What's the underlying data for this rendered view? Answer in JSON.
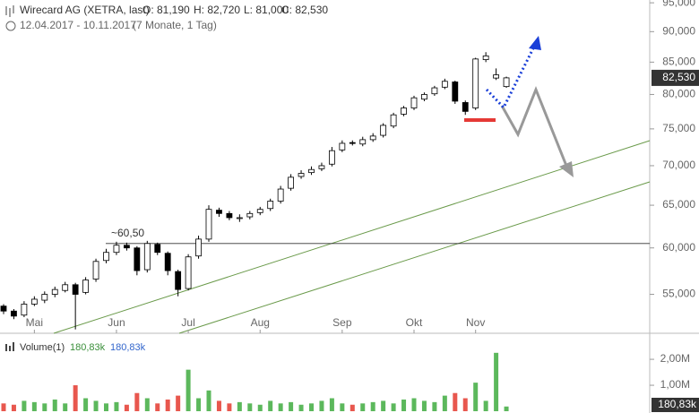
{
  "chart_data": {
    "type": "candlestick",
    "title": "Wirecard AG (XETRA, last)",
    "ohlc_labels": [
      "O: 81,190",
      "H: 82,720",
      "L: 81,000",
      "C: 82,530"
    ],
    "date_range": "12.04.2017 - 10.11.2017",
    "period": "(7 Monate, 1 Tag)",
    "categories": [
      null,
      null,
      null,
      "Mai",
      null,
      null,
      null,
      null,
      null,
      null,
      null,
      "Jun",
      null,
      null,
      null,
      null,
      null,
      null,
      "Jul",
      null,
      null,
      null,
      null,
      null,
      null,
      "Aug",
      null,
      null,
      null,
      null,
      null,
      null,
      null,
      "Sep",
      null,
      null,
      null,
      null,
      null,
      null,
      "Okt",
      null,
      null,
      null,
      null,
      null,
      "Nov",
      null,
      null,
      null
    ],
    "open": [
      53800,
      53300,
      52900,
      54000,
      54400,
      55000,
      55400,
      56000,
      55200,
      56600,
      58600,
      59500,
      60300,
      60000,
      57600,
      60400,
      59400,
      57400,
      55600,
      59100,
      61000,
      64400,
      64000,
      63400,
      63600,
      64100,
      64600,
      65500,
      67100,
      68600,
      69100,
      69600,
      70200,
      72100,
      73100,
      72900,
      73500,
      74100,
      75400,
      77100,
      78000,
      79300,
      80100,
      81100,
      81900,
      78800,
      78000,
      85400,
      82500,
      81190
    ],
    "high": [
      54000,
      53500,
      54300,
      54800,
      55300,
      55800,
      56300,
      56200,
      56800,
      58800,
      59900,
      60700,
      60600,
      60200,
      60800,
      60600,
      59600,
      57600,
      59300,
      61400,
      65000,
      64700,
      64300,
      63900,
      64300,
      64800,
      65800,
      67400,
      68900,
      69400,
      69900,
      70400,
      72500,
      73400,
      73400,
      73900,
      74400,
      75800,
      77300,
      78300,
      79800,
      80300,
      81300,
      82400,
      82100,
      79100,
      85700,
      86600,
      84000,
      82720
    ],
    "low": [
      53000,
      52500,
      52700,
      53800,
      54100,
      54700,
      55200,
      51500,
      55000,
      56300,
      58300,
      59200,
      59700,
      57000,
      57300,
      59200,
      57000,
      54800,
      55400,
      58800,
      60700,
      63600,
      63200,
      63000,
      63300,
      63800,
      64300,
      65200,
      66800,
      68300,
      68800,
      69300,
      69900,
      71800,
      72700,
      72600,
      73200,
      73800,
      75100,
      76800,
      77700,
      79000,
      79800,
      80800,
      78600,
      77000,
      77700,
      85000,
      82200,
      81000
    ],
    "close": [
      53300,
      52800,
      54000,
      54500,
      55000,
      55500,
      56000,
      55000,
      56500,
      58500,
      59500,
      60300,
      60000,
      57500,
      60500,
      59500,
      57500,
      55500,
      59000,
      61000,
      64500,
      64000,
      63500,
      63500,
      64000,
      64500,
      65500,
      67000,
      68500,
      69000,
      69500,
      70000,
      72000,
      73000,
      73000,
      73500,
      74000,
      75500,
      77000,
      78000,
      79500,
      80000,
      81000,
      82000,
      79000,
      77500,
      85500,
      86000,
      83000,
      82530
    ],
    "up_color": "#ffffff",
    "down_color": "#000000",
    "wick_color": "#000000",
    "log_scale": true,
    "ylim": [
      51300,
      95500
    ],
    "yticks": [
      {
        "value": 95000,
        "label": "95,000"
      },
      {
        "value": 90000,
        "label": "90,000"
      },
      {
        "value": 85000,
        "label": "85,000"
      },
      {
        "value": 80000,
        "label": "80,000"
      },
      {
        "value": 75000,
        "label": "75,000"
      },
      {
        "value": 70000,
        "label": "70,000"
      },
      {
        "value": 65000,
        "label": "65,000"
      },
      {
        "value": 60000,
        "label": "60,000"
      },
      {
        "value": 55000,
        "label": "55,000"
      }
    ],
    "last_price": {
      "value": 82530,
      "label": "82,530"
    },
    "level": {
      "value": 60500,
      "label": "~60,50"
    },
    "volume": {
      "name": "Volume(1)",
      "last_label": "180,83k",
      "values": [
        300000,
        250000,
        400000,
        350000,
        300000,
        450000,
        300000,
        1000000,
        500000,
        400000,
        300000,
        350000,
        250000,
        700000,
        500000,
        300000,
        450000,
        600000,
        1600000,
        500000,
        800000,
        400000,
        300000,
        350000,
        300000,
        250000,
        400000,
        300000,
        350000,
        250000,
        300000,
        400000,
        500000,
        300000,
        250000,
        300000,
        350000,
        400000,
        300000,
        450000,
        500000,
        400000,
        350000,
        600000,
        700000,
        500000,
        1100000,
        400000,
        2250000,
        180830
      ],
      "up_color": "#5cb85c",
      "down_color": "#e8574e",
      "ylim": [
        0,
        2900000
      ],
      "yticks": [
        {
          "value": 2000000,
          "label": "2,00M"
        },
        {
          "value": 1000000,
          "label": "1,00M"
        }
      ]
    }
  }
}
